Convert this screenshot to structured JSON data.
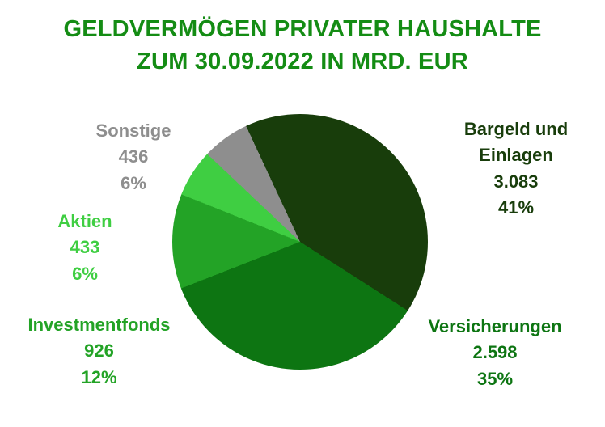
{
  "title": {
    "line1": "GELDVERMÖGEN PRIVATER HAUSHALTE",
    "line2": "ZUM 30.09.2022 IN MRD. EUR"
  },
  "colors": {
    "title": "#148c14",
    "background": "#ffffff"
  },
  "chart_data": {
    "type": "pie",
    "title": "GELDVERMÖGEN PRIVATER HAUSHALTE ZUM 30.09.2022 IN MRD. EUR",
    "unit": "Mrd. EUR",
    "legend": "none",
    "start_angle_deg": -25,
    "direction": "clockwise",
    "slices": [
      {
        "label": "Bargeld und Einlagen",
        "value": "3.083",
        "value_num": 3083,
        "percent": "41%",
        "percent_num": 41,
        "color": "#183d0b"
      },
      {
        "label": "Versicherungen",
        "value": "2.598",
        "value_num": 2598,
        "percent": "35%",
        "percent_num": 35,
        "color": "#0d7512"
      },
      {
        "label": "Investmentfonds",
        "value": "926",
        "value_num": 926,
        "percent": "12%",
        "percent_num": 12,
        "color": "#23a326"
      },
      {
        "label": "Aktien",
        "value": "433",
        "value_num": 433,
        "percent": "6%",
        "percent_num": 6,
        "color": "#3fce42"
      },
      {
        "label": "Sonstige",
        "value": "436",
        "value_num": 436,
        "percent": "6%",
        "percent_num": 6,
        "color": "#8e8e8e"
      }
    ]
  }
}
